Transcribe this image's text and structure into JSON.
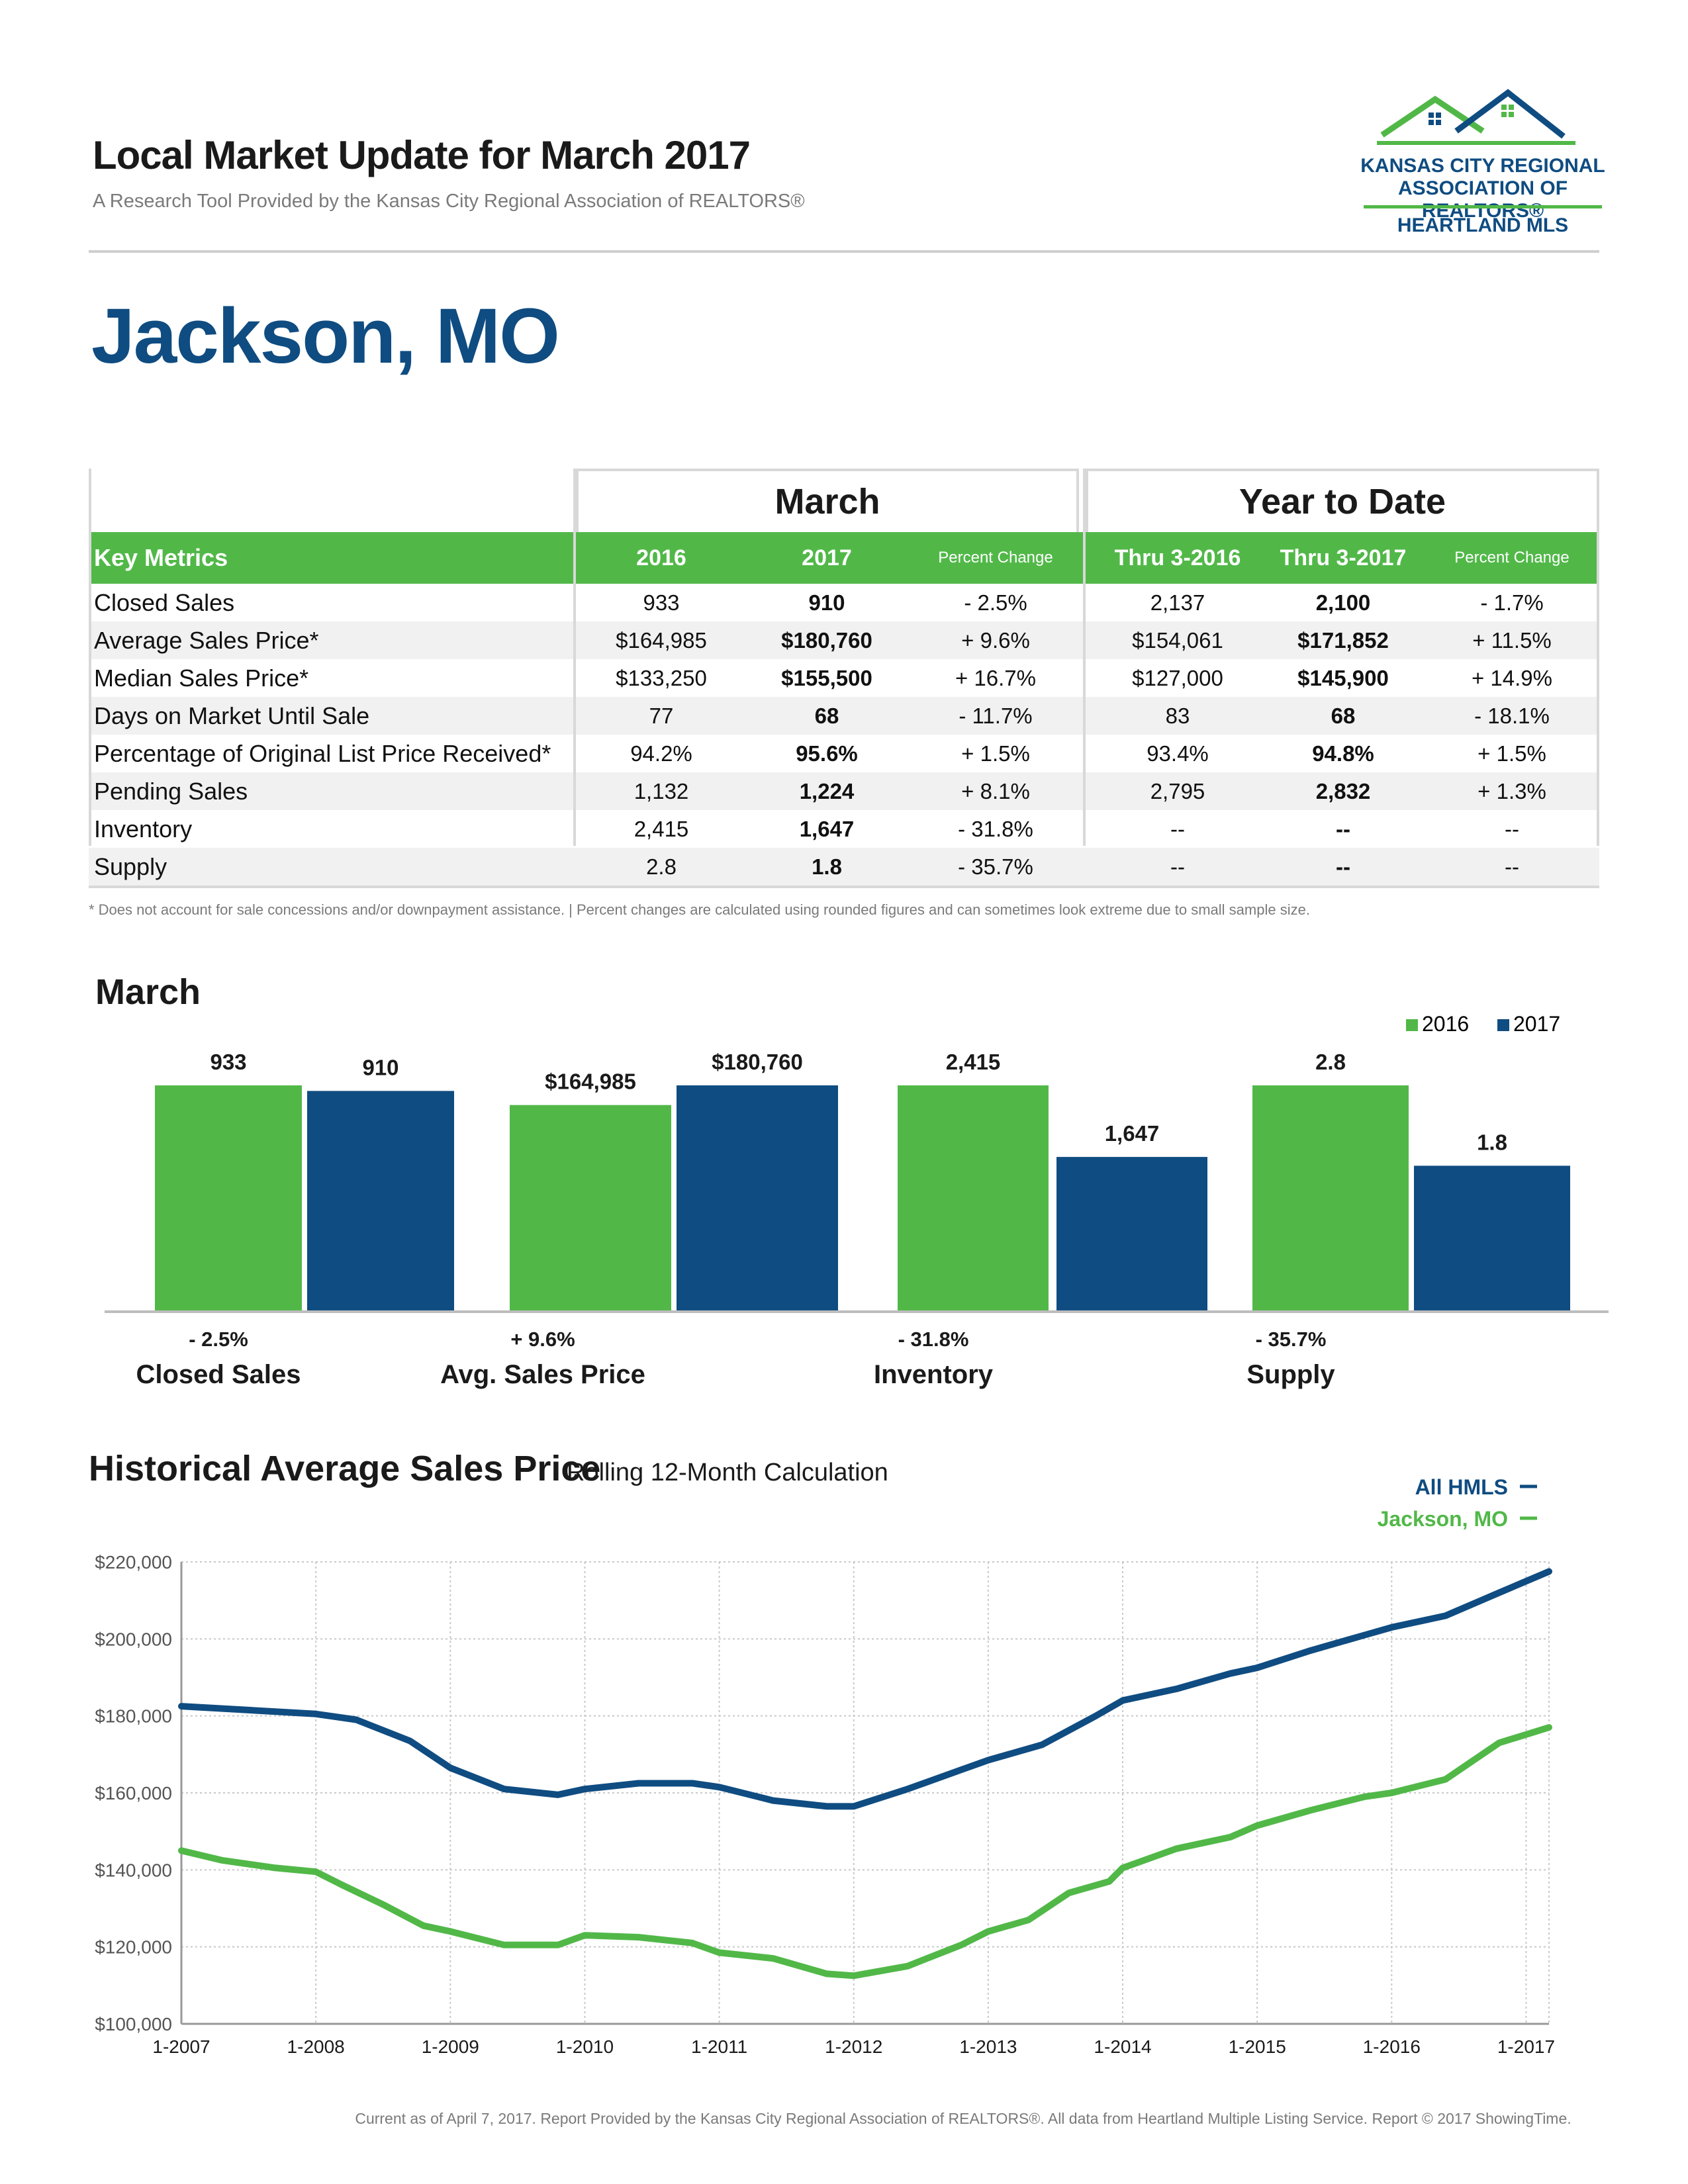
{
  "header": {
    "title": "Local Market Update for March 2017",
    "subtitle": "A Research Tool Provided by the Kansas City Regional Association of REALTORS®"
  },
  "logo": {
    "line1": "KANSAS CITY REGIONAL",
    "line2": "ASSOCIATION OF REALTORS®",
    "line3": "HEARTLAND MLS"
  },
  "location": "Jackson, MO",
  "table": {
    "group_month": "March",
    "group_ytd": "Year to Date",
    "headers": [
      "Key Metrics",
      "2016",
      "2017",
      "Percent Change",
      "Thru 3-2016",
      "Thru 3-2017",
      "Percent Change"
    ],
    "rows": [
      [
        "Closed Sales",
        "933",
        "910",
        "- 2.5%",
        "2,137",
        "2,100",
        "- 1.7%"
      ],
      [
        "Average Sales Price*",
        "$164,985",
        "$180,760",
        "+ 9.6%",
        "$154,061",
        "$171,852",
        "+ 11.5%"
      ],
      [
        "Median Sales Price*",
        "$133,250",
        "$155,500",
        "+ 16.7%",
        "$127,000",
        "$145,900",
        "+ 14.9%"
      ],
      [
        "Days on Market Until Sale",
        "77",
        "68",
        "- 11.7%",
        "83",
        "68",
        "- 18.1%"
      ],
      [
        "Percentage of Original List Price Received*",
        "94.2%",
        "95.6%",
        "+ 1.5%",
        "93.4%",
        "94.8%",
        "+ 1.5%"
      ],
      [
        "Pending Sales",
        "1,132",
        "1,224",
        "+ 8.1%",
        "2,795",
        "2,832",
        "+ 1.3%"
      ],
      [
        "Inventory",
        "2,415",
        "1,647",
        "- 31.8%",
        "--",
        "--",
        "--"
      ],
      [
        "Supply",
        "2.8",
        "1.8",
        "- 35.7%",
        "--",
        "--",
        "--"
      ]
    ],
    "footnote": "* Does not account for sale concessions and/or downpayment assistance.  |  Percent changes are calculated using rounded figures and can sometimes look extreme due to small sample size."
  },
  "bar_section": {
    "title": "March",
    "legend": [
      "2016",
      "2017"
    ]
  },
  "hist_section": {
    "title": "Historical Average Sales Price",
    "subtitle": "Rolling 12-Month Calculation"
  },
  "footer": "Current as of April 7, 2017. Report Provided by the Kansas City Regional Association of REALTORS®. All data from Heartland Multiple Listing Service. Report © 2017 ShowingTime.",
  "colors": {
    "green": "#51b848",
    "blue": "#0f4c81"
  },
  "chart_data": [
    {
      "type": "bar",
      "categories": [
        "Closed Sales",
        "Avg. Sales Price",
        "Inventory",
        "Supply"
      ],
      "series": [
        {
          "name": "2016",
          "values": [
            933,
            164985,
            2415,
            2.8
          ],
          "labels": [
            "933",
            "$164,985",
            "2,415",
            "2.8"
          ]
        },
        {
          "name": "2017",
          "values": [
            910,
            180760,
            1647,
            1.8
          ],
          "labels": [
            "910",
            "$180,760",
            "1,647",
            "1.8"
          ]
        }
      ],
      "percent_change": [
        "- 2.5%",
        "+ 9.6%",
        "- 31.8%",
        "- 35.7%"
      ],
      "title": "March",
      "legend": "top-right"
    },
    {
      "type": "line",
      "title": "Historical Average Sales Price",
      "subtitle": "Rolling 12-Month Calculation",
      "x_ticks": [
        "1-2007",
        "1-2008",
        "1-2009",
        "1-2010",
        "1-2011",
        "1-2012",
        "1-2013",
        "1-2014",
        "1-2015",
        "1-2016",
        "1-2017"
      ],
      "y_ticks": [
        "$100,000",
        "$120,000",
        "$140,000",
        "$160,000",
        "$180,000",
        "$200,000",
        "$220,000"
      ],
      "ylim": [
        100000,
        220000
      ],
      "xlim": [
        2007.0,
        2017.17
      ],
      "grid": true,
      "legend": "top-right",
      "series": [
        {
          "name": "All HMLS",
          "color": "#0f4c81",
          "x": [
            2007.0,
            2007.5,
            2008.0,
            2008.3,
            2008.7,
            2009.0,
            2009.4,
            2009.8,
            2010.0,
            2010.4,
            2010.8,
            2011.0,
            2011.4,
            2011.8,
            2012.0,
            2012.4,
            2012.8,
            2013.0,
            2013.4,
            2013.8,
            2014.0,
            2014.4,
            2014.8,
            2015.0,
            2015.4,
            2015.8,
            2016.0,
            2016.4,
            2016.8,
            2017.17
          ],
          "y": [
            182500,
            181500,
            180500,
            179000,
            173500,
            166500,
            161000,
            159500,
            161000,
            162500,
            162500,
            161500,
            158000,
            156500,
            156500,
            161000,
            166000,
            168500,
            172500,
            180000,
            184000,
            187000,
            191000,
            192500,
            197000,
            201000,
            203000,
            206000,
            212000,
            217500
          ]
        },
        {
          "name": "Jackson, MO",
          "color": "#51b848",
          "x": [
            2007.0,
            2007.3,
            2007.7,
            2008.0,
            2008.2,
            2008.5,
            2008.8,
            2009.0,
            2009.4,
            2009.8,
            2010.0,
            2010.4,
            2010.8,
            2011.0,
            2011.4,
            2011.8,
            2012.0,
            2012.4,
            2012.8,
            2013.0,
            2013.3,
            2013.6,
            2013.9,
            2014.0,
            2014.4,
            2014.8,
            2015.0,
            2015.4,
            2015.8,
            2016.0,
            2016.4,
            2016.8,
            2017.17
          ],
          "y": [
            145000,
            142500,
            140500,
            139500,
            136000,
            131000,
            125500,
            124000,
            120500,
            120500,
            123000,
            122500,
            121000,
            118500,
            117000,
            113000,
            112500,
            115000,
            120500,
            124000,
            127000,
            134000,
            137000,
            140500,
            145500,
            148500,
            151500,
            155500,
            159000,
            160000,
            163500,
            173000,
            177000
          ]
        }
      ]
    }
  ]
}
